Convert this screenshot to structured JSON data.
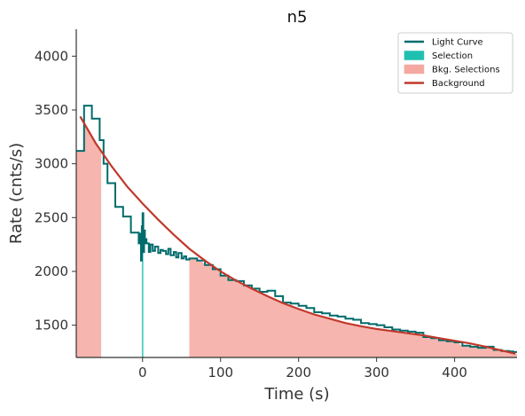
{
  "chart_data": {
    "type": "line",
    "title": "n5",
    "xlabel": "Time (s)",
    "ylabel": "Rate (cnts/s)",
    "xlim": [
      -85,
      480
    ],
    "ylim": [
      1200,
      4250
    ],
    "x_ticks": [
      0,
      100,
      200,
      300,
      400
    ],
    "y_ticks": [
      1500,
      2000,
      2500,
      3000,
      3500,
      4000
    ],
    "grid": false,
    "legend_position": "top-right",
    "legend": [
      {
        "label": "Light Curve",
        "kind": "line",
        "color": "#006b6b"
      },
      {
        "label": "Selection",
        "kind": "patch",
        "color": "#20c0b0"
      },
      {
        "label": "Bkg. Selections",
        "kind": "patch",
        "color": "#f4a8a0"
      },
      {
        "label": "Background",
        "kind": "line",
        "color": "#c0392b"
      }
    ],
    "series": [
      {
        "name": "Light Curve",
        "step": "post",
        "color": "#006b6b",
        "x": [
          -85,
          -75,
          -65,
          -55,
          -50,
          -45,
          -35,
          -25,
          -15,
          -5,
          -3,
          -2,
          -1,
          0,
          1,
          2,
          3,
          4,
          5,
          8,
          10,
          13,
          16,
          20,
          23,
          26,
          30,
          33,
          36,
          40,
          43,
          46,
          50,
          53,
          56,
          60,
          70,
          80,
          90,
          100,
          110,
          120,
          130,
          140,
          150,
          160,
          170,
          180,
          190,
          200,
          210,
          220,
          230,
          240,
          250,
          260,
          270,
          280,
          290,
          300,
          310,
          320,
          330,
          340,
          350,
          360,
          370,
          380,
          390,
          400,
          410,
          420,
          430,
          440,
          450,
          460,
          470,
          475,
          480
        ],
        "values": [
          3120,
          3540,
          3420,
          3220,
          3000,
          2820,
          2600,
          2510,
          2360,
          2260,
          2350,
          2100,
          2420,
          2540,
          2180,
          2380,
          2260,
          2300,
          2260,
          2180,
          2250,
          2190,
          2230,
          2170,
          2200,
          2190,
          2160,
          2210,
          2150,
          2180,
          2130,
          2170,
          2120,
          2140,
          2110,
          2120,
          2100,
          2060,
          2020,
          1960,
          1920,
          1910,
          1870,
          1840,
          1810,
          1820,
          1770,
          1710,
          1700,
          1680,
          1660,
          1620,
          1610,
          1590,
          1580,
          1560,
          1550,
          1520,
          1510,
          1500,
          1480,
          1460,
          1450,
          1440,
          1430,
          1390,
          1380,
          1360,
          1350,
          1340,
          1310,
          1300,
          1290,
          1300,
          1270,
          1260,
          1255,
          1250,
          1250
        ]
      },
      {
        "name": "Background",
        "color": "#c0392b",
        "x": [
          -80,
          -60,
          -40,
          -20,
          0,
          20,
          40,
          60,
          80,
          100,
          120,
          140,
          160,
          180,
          200,
          220,
          240,
          260,
          280,
          300,
          320,
          340,
          360,
          380,
          400,
          420,
          440,
          460,
          478
        ],
        "values": [
          3440,
          3190,
          2980,
          2790,
          2630,
          2480,
          2340,
          2210,
          2100,
          2000,
          1915,
          1840,
          1770,
          1705,
          1650,
          1600,
          1560,
          1520,
          1490,
          1465,
          1445,
          1425,
          1405,
          1380,
          1355,
          1330,
          1300,
          1265,
          1235
        ]
      }
    ],
    "selection": {
      "x": [
        -1,
        1
      ],
      "color": "#20c0b0"
    },
    "bkg_selections": [
      {
        "x": [
          -85,
          -53
        ],
        "color": "#f4a8a0"
      },
      {
        "x": [
          60,
          480
        ],
        "color": "#f4a8a0"
      }
    ]
  }
}
